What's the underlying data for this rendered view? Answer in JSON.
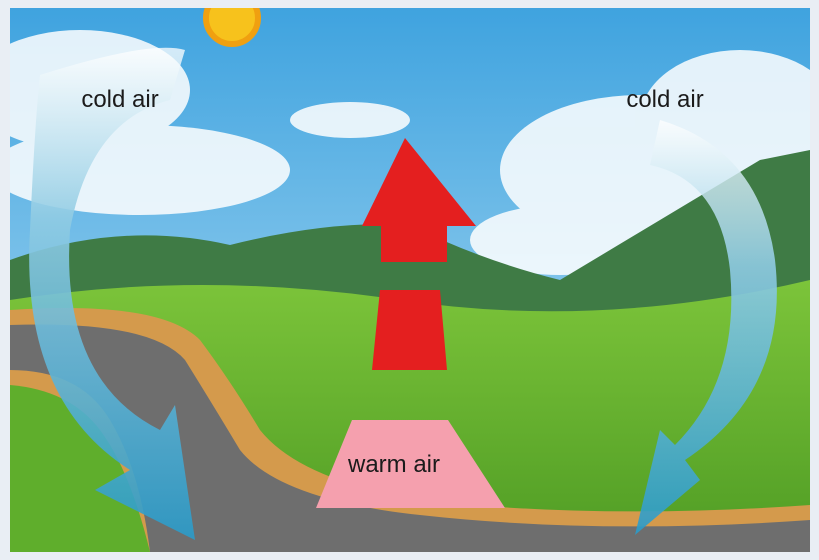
{
  "labels": {
    "left": "cold air",
    "right": "cold air",
    "center": "warm air"
  }
}
